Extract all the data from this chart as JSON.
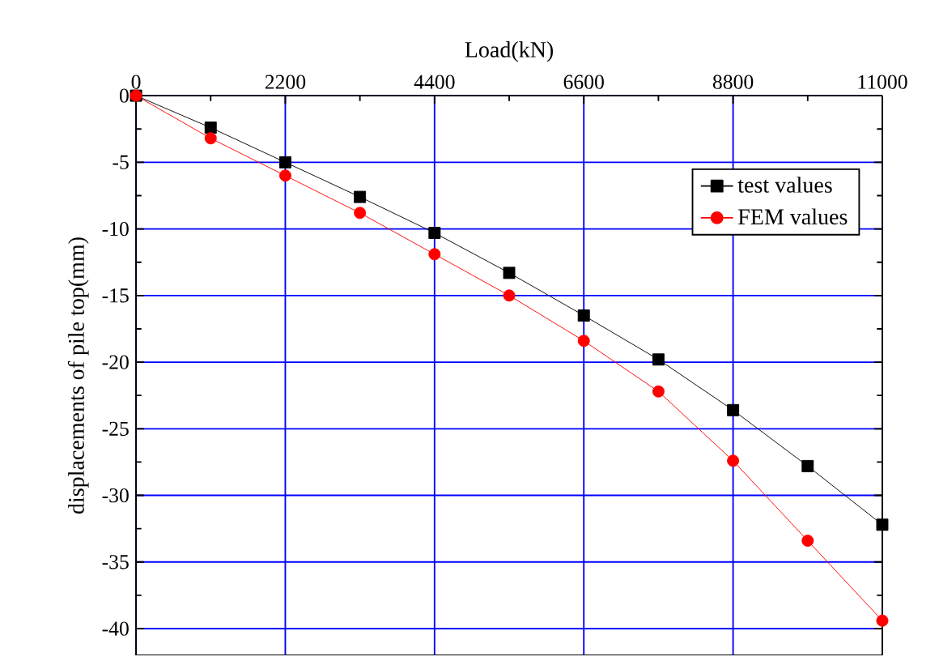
{
  "chart_data": {
    "type": "line",
    "xlabel": "Load(kN)",
    "ylabel": "displacements of pile top(mm)",
    "x": [
      0,
      1100,
      2200,
      3300,
      4400,
      5500,
      6600,
      7700,
      8800,
      9900,
      11000
    ],
    "series": [
      {
        "name": "test values",
        "color": "#000000",
        "marker": "square",
        "values": [
          0,
          -2.4,
          -5.0,
          -7.6,
          -10.3,
          -13.3,
          -16.5,
          -19.8,
          -23.6,
          -27.8,
          -32.2
        ]
      },
      {
        "name": "FEM  values",
        "color": "#ff0000",
        "marker": "circle",
        "values": [
          0,
          -3.2,
          -6.0,
          -8.8,
          -11.9,
          -15.0,
          -18.4,
          -22.2,
          -27.4,
          -33.4,
          -39.4
        ]
      }
    ],
    "xlim": [
      0,
      11000
    ],
    "xticks": [
      0,
      2200,
      4400,
      6600,
      8800,
      11000
    ],
    "ylim": [
      -42,
      0
    ],
    "yticks": [
      0,
      -5,
      -10,
      -15,
      -20,
      -25,
      -30,
      -35,
      -40
    ],
    "grid": true,
    "legend": "top right",
    "line_style": "solid"
  }
}
